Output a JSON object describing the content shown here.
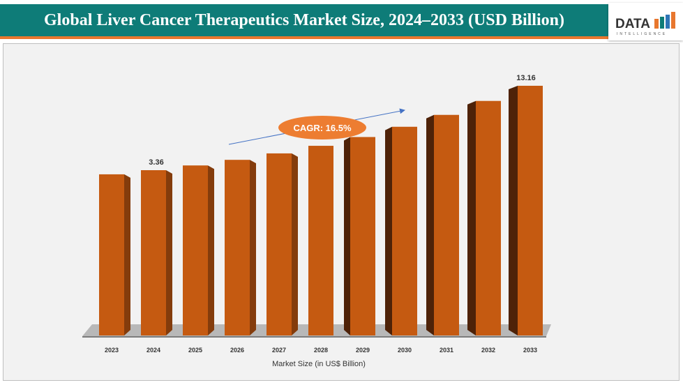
{
  "header": {
    "title": "Global Liver Cancer Therapeutics Market Size, 2024–2033 (USD Billion)"
  },
  "logo": {
    "text": "DATA",
    "subtext": "INTELLIGENCE"
  },
  "chart_data": {
    "type": "bar",
    "title": "Global Liver Cancer Therapeutics Market Size, 2024–2033 (USD Billion)",
    "xlabel": "Market Size (in US$ Billion)",
    "ylabel": "",
    "categories": [
      "2023",
      "2024",
      "2025",
      "2026",
      "2027",
      "2028",
      "2029",
      "2030",
      "2031",
      "2032",
      "2033"
    ],
    "values": [
      2.88,
      3.36,
      3.91,
      4.56,
      5.31,
      6.19,
      7.21,
      8.4,
      9.78,
      11.4,
      13.16
    ],
    "data_labels": {
      "2024": "3.36",
      "2033": "13.16"
    },
    "annotation": "CAGR: 16.5%",
    "grid": false,
    "colors": {
      "bar_front": "#c55a11",
      "bar_side_left": "#843c0c",
      "bar_side_right": "#4e2208",
      "cagr": "#ed7d31",
      "arrow": "#4472c4",
      "header": "#0e7c78"
    }
  }
}
